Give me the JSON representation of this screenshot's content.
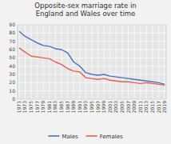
{
  "chart_data": {
    "type": "line",
    "title": "Opposite-sex marriage rate in\nEngland and Wales over time",
    "x": [
      1971,
      1973,
      1975,
      1977,
      1979,
      1981,
      1983,
      1985,
      1987,
      1989,
      1991,
      1993,
      1995,
      1997,
      1999,
      2001,
      2003,
      2005,
      2007,
      2009,
      2011,
      2013,
      2015,
      2017,
      2019
    ],
    "series": [
      {
        "name": "Males",
        "color": "#4472c4",
        "values": [
          82,
          76,
          72,
          68,
          65,
          64,
          61,
          60,
          56,
          45,
          40,
          32,
          30,
          29,
          30,
          28,
          27,
          26,
          25,
          24,
          23,
          22,
          21,
          20,
          18
        ]
      },
      {
        "name": "Females",
        "color": "#e8604c",
        "values": [
          62,
          57,
          52,
          51,
          50,
          49,
          45,
          42,
          37,
          34,
          33,
          26,
          25,
          24,
          25,
          23,
          22,
          21,
          21,
          20,
          19,
          20,
          19,
          18,
          17
        ]
      }
    ],
    "xlim": [
      1970.5,
      2019.5
    ],
    "xticks": [
      1971,
      1973,
      1975,
      1977,
      1979,
      1981,
      1983,
      1985,
      1987,
      1989,
      1991,
      1993,
      1995,
      1997,
      1999,
      2001,
      2003,
      2005,
      2007,
      2009,
      2011,
      2013,
      2015,
      2017,
      2019
    ],
    "ylim": [
      0,
      90
    ],
    "yticks": [
      0,
      10,
      20,
      30,
      40,
      50,
      60,
      70,
      80,
      90
    ],
    "grid": true,
    "legend": "bottom"
  }
}
